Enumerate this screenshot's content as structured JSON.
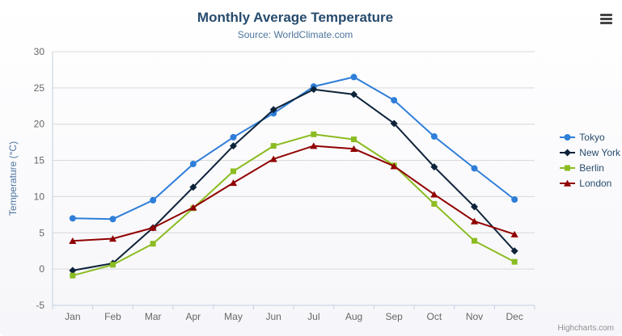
{
  "credits": {
    "label": "Highcharts.com"
  },
  "chart_data": {
    "type": "line",
    "title": "Monthly Average Temperature",
    "subtitle": "Source: WorldClimate.com",
    "xlabel": "",
    "ylabel": "Temperature (°C)",
    "ylim": [
      -5,
      30
    ],
    "ytick_step": 5,
    "grid": true,
    "legend_position": "right",
    "categories": [
      "Jan",
      "Feb",
      "Mar",
      "Apr",
      "May",
      "Jun",
      "Jul",
      "Aug",
      "Sep",
      "Oct",
      "Nov",
      "Dec"
    ],
    "series": [
      {
        "name": "Tokyo",
        "color": "#2f7ed8",
        "marker": "circle",
        "values": [
          7.0,
          6.9,
          9.5,
          14.5,
          18.2,
          21.5,
          25.2,
          26.5,
          23.3,
          18.3,
          13.9,
          9.6
        ]
      },
      {
        "name": "New York",
        "color": "#0d233a",
        "marker": "diamond",
        "values": [
          -0.2,
          0.8,
          5.7,
          11.3,
          17.0,
          22.0,
          24.8,
          24.1,
          20.1,
          14.1,
          8.6,
          2.5
        ]
      },
      {
        "name": "Berlin",
        "color": "#8bbc21",
        "marker": "square",
        "values": [
          -0.9,
          0.6,
          3.5,
          8.4,
          13.5,
          17.0,
          18.6,
          17.9,
          14.3,
          9.0,
          3.9,
          1.0
        ]
      },
      {
        "name": "London",
        "color": "#910000",
        "marker": "triangle",
        "values": [
          3.9,
          4.2,
          5.7,
          8.5,
          11.9,
          15.2,
          17.0,
          16.6,
          14.2,
          10.3,
          6.6,
          4.8
        ]
      }
    ],
    "style": {
      "title_color": "#274b6d",
      "subtitle_color": "#4d759e",
      "ylabel_color": "#4d759e",
      "axis_label_color": "#666666",
      "grid_color": "#d8d8d8",
      "axis_line_color": "#c0d0e0",
      "legend_text_color": "#274b6d",
      "credits_color": "#909090"
    }
  }
}
